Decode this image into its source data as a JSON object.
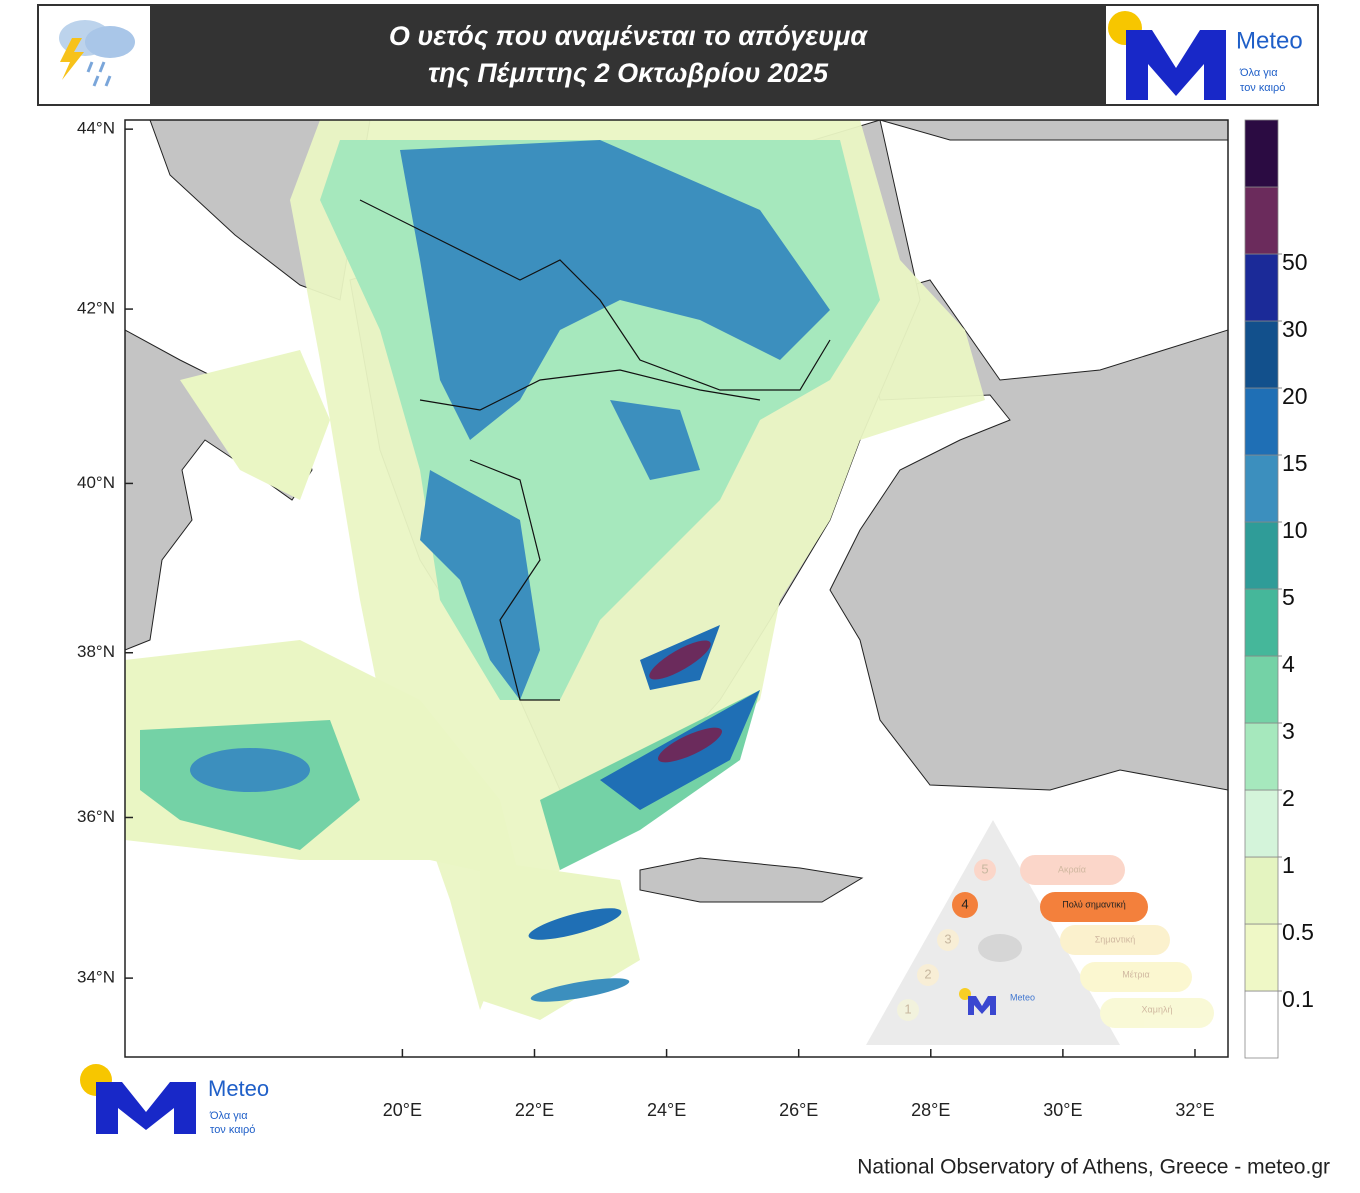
{
  "header": {
    "title_lines": [
      "Ο υετός που  αναμένεται το απόγευμα",
      "της Πέμπτης 2 Οκτωβρίου 2025"
    ]
  },
  "logo": {
    "name": "Meteo",
    "tagline_lines": [
      "Όλα για",
      "τον καιρό"
    ]
  },
  "map": {
    "projection": "mercator",
    "xlim": [
      15.8,
      32.5
    ],
    "ylim": [
      33,
      44.1
    ],
    "xticks": [
      {
        "value": 20,
        "label": "20°E"
      },
      {
        "value": 22,
        "label": "22°E"
      },
      {
        "value": 24,
        "label": "24°E"
      },
      {
        "value": 26,
        "label": "26°E"
      },
      {
        "value": 28,
        "label": "28°E"
      },
      {
        "value": 30,
        "label": "30°E"
      },
      {
        "value": 32,
        "label": "32°E"
      }
    ],
    "yticks": [
      {
        "value": 44,
        "label": "44°N"
      },
      {
        "value": 42,
        "label": "42°N"
      },
      {
        "value": 40,
        "label": "40°N"
      },
      {
        "value": 38,
        "label": "38°N"
      },
      {
        "value": 36,
        "label": "36°N"
      },
      {
        "value": 34,
        "label": "34°N"
      }
    ]
  },
  "colorbar": {
    "levels": [
      0.1,
      0.5,
      1,
      2,
      3,
      4,
      5,
      10,
      15,
      20,
      30,
      50
    ],
    "colors": [
      "#ffffff",
      "#eff8c6",
      "#e4f4c0",
      "#d4f4da",
      "#a6e8bd",
      "#74d2a6",
      "#45b79a",
      "#2f9c98",
      "#3c8fbe",
      "#1f6fb5",
      "#12508c",
      "#1b2a98",
      "#6b2b5c",
      "#2b0b42"
    ]
  },
  "risk_scale": {
    "levels": [
      {
        "number": "5",
        "label": "Ακραία"
      },
      {
        "number": "4",
        "label": "Πολύ σημαντική"
      },
      {
        "number": "3",
        "label": "Σημαντική"
      },
      {
        "number": "2",
        "label": "Μέτρια"
      },
      {
        "number": "1",
        "label": "Χαμηλή"
      }
    ]
  },
  "credit": "National Observatory of Athens, Greece - meteo.gr"
}
